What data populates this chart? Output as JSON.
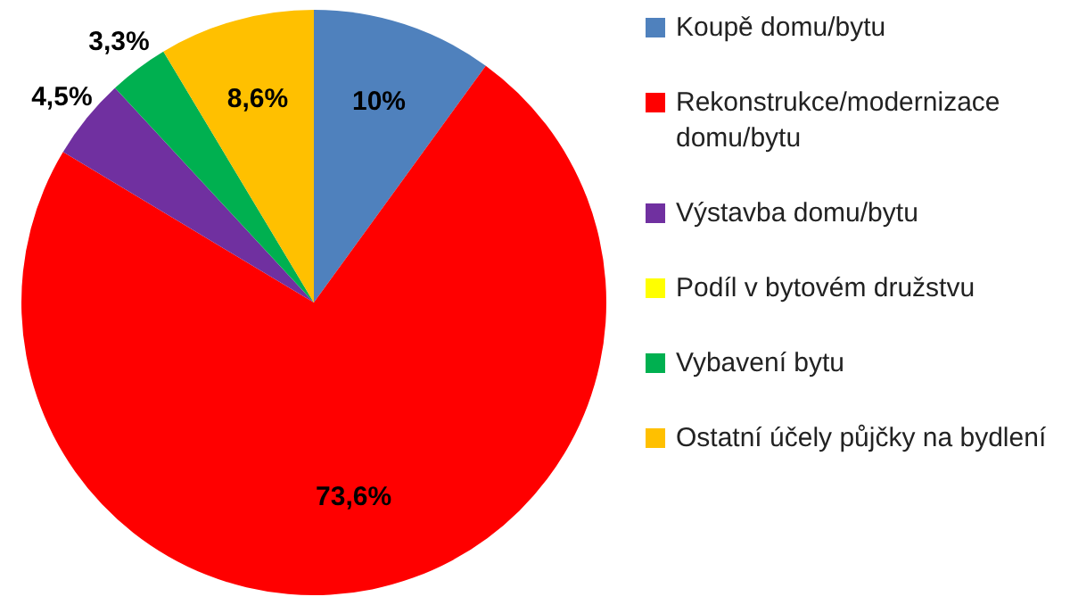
{
  "chart_data": {
    "type": "pie",
    "categories": [
      "Koupě domu/bytu",
      "Rekonstrukce/modernizace domu/bytu",
      "Výstavba domu/bytu",
      "Podíl v bytovém družstvu",
      "Vybavení bytu",
      "Ostatní účely půjčky na bydlení"
    ],
    "values": [
      10,
      73.6,
      4.5,
      0,
      3.3,
      8.6
    ],
    "colors": [
      "#4f81bd",
      "#ff0000",
      "#7030a0",
      "#ffff00",
      "#00b050",
      "#ffc000"
    ],
    "value_labels": [
      "10%",
      "73,6%",
      "4,5%",
      null,
      "3,3%",
      "8,6%"
    ],
    "legend": "right"
  }
}
